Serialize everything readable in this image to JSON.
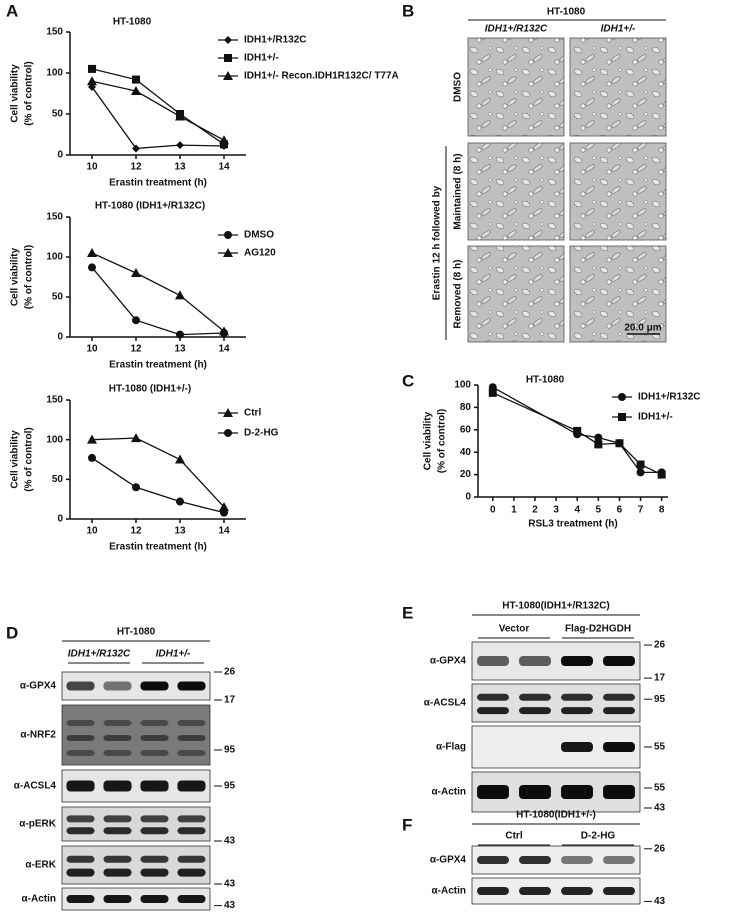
{
  "panel_labels": [
    "A",
    "B",
    "C",
    "D",
    "E",
    "F"
  ],
  "chart_data": [
    {
      "type": "line",
      "title": "HT-1080",
      "y_label": [
        "Cell viability",
        "(% of control)"
      ],
      "x_label": "Erastin treatment (h)",
      "categories": [
        "10",
        "12",
        "13",
        "14"
      ],
      "ylim": [
        0,
        150
      ],
      "yticks": [
        0,
        50,
        100,
        150
      ],
      "series": [
        {
          "name": "IDH1+/R132C",
          "marker": "diamond",
          "color": "#111111",
          "values": [
            83,
            8,
            12,
            11
          ]
        },
        {
          "name": "IDH1+/-",
          "marker": "square",
          "color": "#111111",
          "values": [
            105,
            92,
            50,
            13
          ]
        },
        {
          "name": "IDH1+/- Recon.IDH1R132C/ T77A",
          "marker": "triangle",
          "color": "#111111",
          "values": [
            90,
            78,
            47,
            18
          ]
        }
      ]
    },
    {
      "type": "line",
      "title": "HT-1080 (IDH1+/R132C)",
      "y_label": [
        "Cell viability",
        "(% of control)"
      ],
      "x_label": "Erastin treatment (h)",
      "categories": [
        "10",
        "12",
        "13",
        "14"
      ],
      "ylim": [
        0,
        150
      ],
      "yticks": [
        0,
        50,
        100,
        150
      ],
      "series": [
        {
          "name": "DMSO",
          "marker": "circle",
          "color": "#111111",
          "values": [
            87,
            21,
            3,
            5
          ]
        },
        {
          "name": "AG120",
          "marker": "triangle",
          "color": "#111111",
          "values": [
            105,
            80,
            52,
            7
          ]
        }
      ]
    },
    {
      "type": "line",
      "title": "HT-1080 (IDH1+/-)",
      "y_label": [
        "Cell viability",
        "(% of control)"
      ],
      "x_label": "Erastin treatment (h)",
      "categories": [
        "10",
        "12",
        "13",
        "14"
      ],
      "ylim": [
        0,
        150
      ],
      "yticks": [
        0,
        50,
        100,
        150
      ],
      "series": [
        {
          "name": "Ctrl",
          "marker": "triangle",
          "color": "#111111",
          "values": [
            100,
            102,
            75,
            15
          ]
        },
        {
          "name": "D-2-HG",
          "marker": "circle",
          "color": "#111111",
          "values": [
            77,
            40,
            22,
            8
          ]
        }
      ]
    },
    {
      "type": "scatterline",
      "title": "HT-1080",
      "y_label": [
        "Cell viability",
        "(% of control)"
      ],
      "x_label": "RSL3 treatment (h)",
      "x": [
        0,
        4,
        5,
        6,
        7,
        8
      ],
      "xlim": [
        -0.7,
        8.3
      ],
      "xticks": [
        0,
        1,
        2,
        3,
        4,
        5,
        6,
        7,
        8
      ],
      "ylim": [
        0,
        100
      ],
      "yticks": [
        0,
        20,
        40,
        60,
        80,
        100
      ],
      "series": [
        {
          "name": "IDH1+/R132C",
          "marker": "circle",
          "color": "#111111",
          "values": [
            98,
            56,
            53,
            48,
            22,
            22
          ]
        },
        {
          "name": "IDH1+/-",
          "marker": "square",
          "color": "#111111",
          "values": [
            93,
            59,
            47,
            48,
            29,
            20
          ]
        }
      ]
    }
  ],
  "micrograph": {
    "title": "HT-1080",
    "columns": [
      "IDH1+/R132C",
      "IDH1+/-"
    ],
    "rows": [
      "DMSO",
      "Maintained (8 h)",
      "Removed (8 h)"
    ],
    "group_label": "Erastin 12 h followed by",
    "scale_bar": "20.0 μm"
  },
  "blot_d": {
    "title": "HT-1080",
    "groups": [
      "IDH1+/R132C",
      "IDH1+/-"
    ],
    "rows": [
      {
        "label": "α-GPX4",
        "markers": [
          26,
          17
        ]
      },
      {
        "label": "α-NRF2",
        "markers": [
          95
        ]
      },
      {
        "label": "α-ACSL4",
        "markers": [
          95
        ]
      },
      {
        "label": "α-pERK",
        "markers": [
          43
        ]
      },
      {
        "label": "α-ERK",
        "markers": [
          43
        ]
      },
      {
        "label": "α-Actin",
        "markers": [
          43
        ]
      }
    ]
  },
  "blot_e": {
    "title": "HT-1080(IDH1+/R132C)",
    "groups": [
      "Vector",
      "Flag-D2HGDH"
    ],
    "rows": [
      {
        "label": "α-GPX4",
        "markers": [
          26,
          17
        ]
      },
      {
        "label": "α-ACSL4",
        "markers": [
          95
        ]
      },
      {
        "label": "α-Flag",
        "markers": [
          55
        ]
      },
      {
        "label": "α-Actin",
        "markers": [
          55,
          43
        ]
      }
    ]
  },
  "blot_f": {
    "title": "HT-1080(IDH1+/-)",
    "groups": [
      "Ctrl",
      "D-2-HG"
    ],
    "rows": [
      {
        "label": "α-GPX4",
        "markers": [
          26
        ]
      },
      {
        "label": "α-Actin",
        "markers": [
          43
        ]
      }
    ]
  }
}
